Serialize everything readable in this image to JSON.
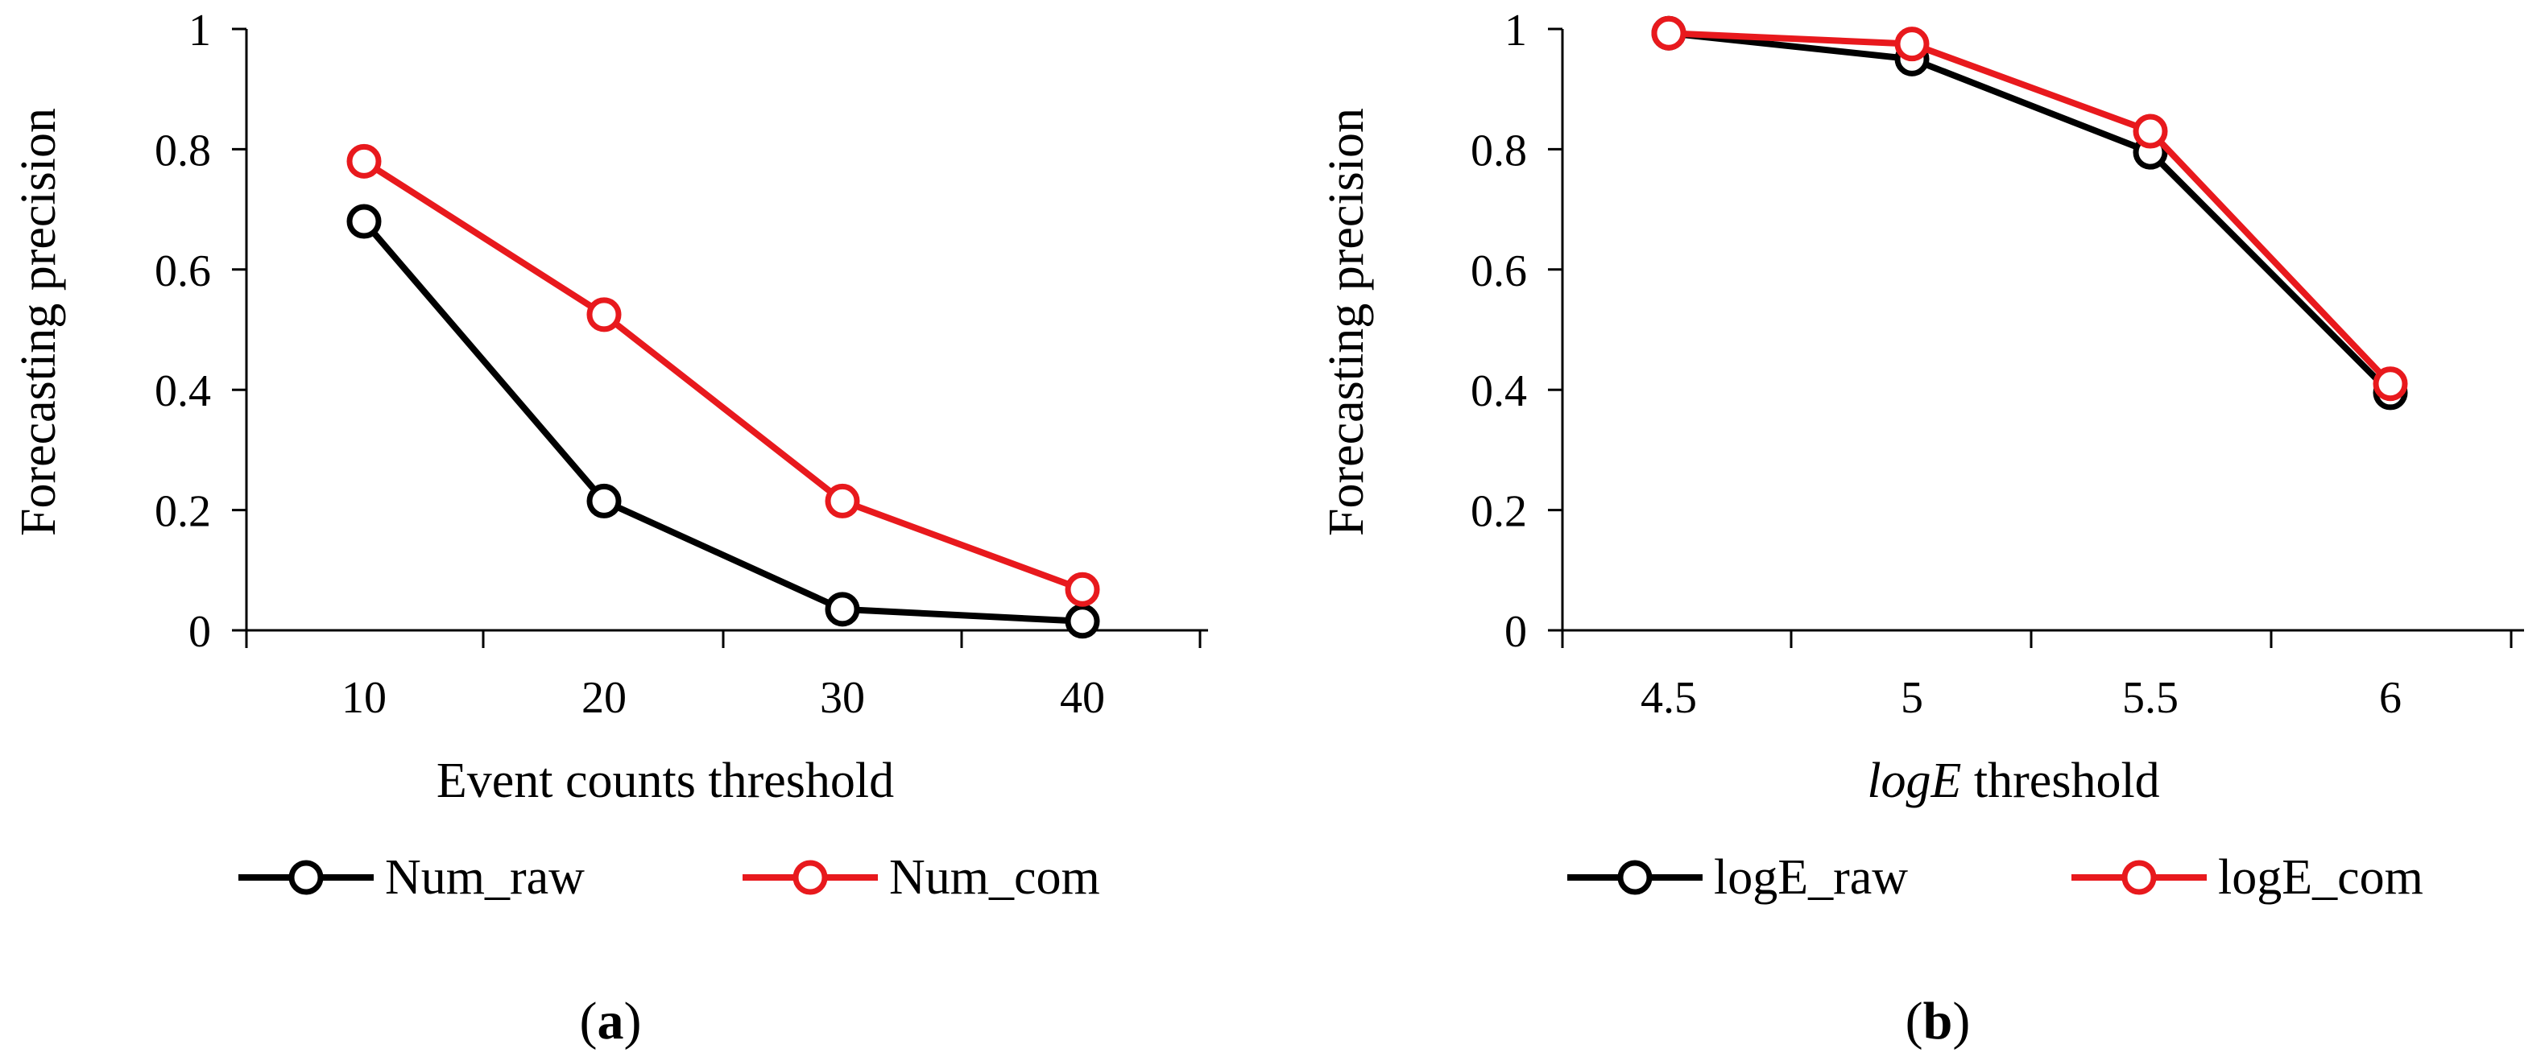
{
  "chart_data": [
    {
      "panel": "a",
      "type": "line",
      "x": [
        10,
        20,
        30,
        40
      ],
      "categories": [
        "10",
        "20",
        "30",
        "40"
      ],
      "series": [
        {
          "name": "Num_raw",
          "values": [
            0.68,
            0.215,
            0.035,
            0.015
          ],
          "color": "#000000"
        },
        {
          "name": "Num_com",
          "values": [
            0.78,
            0.525,
            0.215,
            0.068
          ],
          "color": "#e8191d"
        }
      ],
      "xlabel": "Event counts threshold",
      "ylabel": "Forecasting precision",
      "ylim": [
        0,
        1
      ],
      "yticks": [
        "0",
        "0.2",
        "0.4",
        "0.6",
        "0.8",
        "1"
      ],
      "legend_position": "bottom",
      "grid": false,
      "markers": "open-circle"
    },
    {
      "panel": "b",
      "type": "line",
      "x": [
        4.5,
        5,
        5.5,
        6
      ],
      "categories": [
        "4.5",
        "5",
        "5.5",
        "6"
      ],
      "series": [
        {
          "name": "logE_raw",
          "values": [
            0.993,
            0.95,
            0.795,
            0.395
          ],
          "color": "#000000"
        },
        {
          "name": "logE_com",
          "values": [
            0.993,
            0.975,
            0.83,
            0.41
          ],
          "color": "#e8191d"
        }
      ],
      "xlabel_italic": "logE",
      "xlabel_rest": " threshold",
      "ylabel": "Forecasting precision",
      "ylim": [
        0,
        1
      ],
      "yticks": [
        "0",
        "0.2",
        "0.4",
        "0.6",
        "0.8",
        "1"
      ],
      "legend_position": "bottom",
      "grid": false,
      "markers": "open-circle"
    }
  ],
  "panel_labels": [
    {
      "open": "(",
      "letter": "a",
      "close": ")"
    },
    {
      "open": "(",
      "letter": "b",
      "close": ")"
    }
  ]
}
